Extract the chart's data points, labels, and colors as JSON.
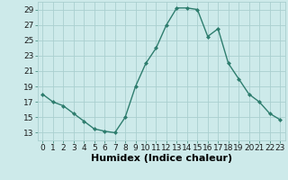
{
  "x": [
    0,
    1,
    2,
    3,
    4,
    5,
    6,
    7,
    8,
    9,
    10,
    11,
    12,
    13,
    14,
    15,
    16,
    17,
    18,
    19,
    20,
    21,
    22,
    23
  ],
  "y": [
    18,
    17,
    16.5,
    15.5,
    14.5,
    13.5,
    13.2,
    13,
    15,
    19,
    22,
    24,
    27,
    29.2,
    29.2,
    29,
    25.5,
    26.5,
    22,
    20,
    18,
    17,
    15.5,
    14.7
  ],
  "line_color": "#2e7d6e",
  "marker": "D",
  "marker_size": 2,
  "bg_color": "#cdeaea",
  "grid_color": "#aacfcf",
  "xlabel": "Humidex (Indice chaleur)",
  "xlim": [
    -0.5,
    23.5
  ],
  "ylim": [
    12,
    30
  ],
  "yticks": [
    13,
    15,
    17,
    19,
    21,
    23,
    25,
    27,
    29
  ],
  "xticks": [
    0,
    1,
    2,
    3,
    4,
    5,
    6,
    7,
    8,
    9,
    10,
    11,
    12,
    13,
    14,
    15,
    16,
    17,
    18,
    19,
    20,
    21,
    22,
    23
  ],
  "xtick_labels": [
    "0",
    "1",
    "2",
    "3",
    "4",
    "5",
    "6",
    "7",
    "8",
    "9",
    "10",
    "11",
    "12",
    "13",
    "14",
    "15",
    "16",
    "17",
    "18",
    "19",
    "20",
    "21",
    "22",
    "23"
  ],
  "xlabel_fontsize": 8,
  "tick_fontsize": 6.5
}
